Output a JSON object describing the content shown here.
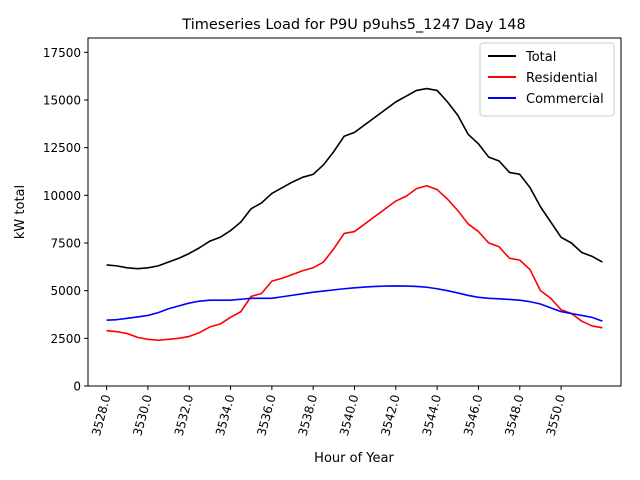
{
  "chart_data": {
    "type": "line",
    "title": "Timeseries Load for P9U p9uhs5_1247  Day 148",
    "xlabel": "Hour of Year",
    "ylabel": "kW total",
    "xlim": [
      3527.1,
      3552.9
    ],
    "ylim": [
      0,
      18250
    ],
    "xticks": [
      3528,
      3530,
      3532,
      3534,
      3536,
      3538,
      3540,
      3542,
      3544,
      3546,
      3548,
      3550
    ],
    "xtick_labels": [
      "3528.0",
      "3530.0",
      "3532.0",
      "3534.0",
      "3536.0",
      "3538.0",
      "3540.0",
      "3542.0",
      "3544.0",
      "3546.0",
      "3548.0",
      "3550.0"
    ],
    "yticks": [
      0,
      2500,
      5000,
      7500,
      10000,
      12500,
      15000,
      17500
    ],
    "ytick_labels": [
      "0",
      "2500",
      "5000",
      "7500",
      "10000",
      "12500",
      "15000",
      "17500"
    ],
    "grid": false,
    "legend": {
      "position": "top-right",
      "entries": [
        "Total",
        "Residential",
        "Commercial"
      ]
    },
    "x": [
      3528.0,
      3528.5,
      3529.0,
      3529.5,
      3530.0,
      3530.5,
      3531.0,
      3531.5,
      3532.0,
      3532.5,
      3533.0,
      3533.5,
      3534.0,
      3534.5,
      3535.0,
      3535.5,
      3536.0,
      3536.5,
      3537.0,
      3537.5,
      3538.0,
      3538.5,
      3539.0,
      3539.5,
      3540.0,
      3540.5,
      3541.0,
      3541.5,
      3542.0,
      3542.5,
      3543.0,
      3543.5,
      3544.0,
      3544.5,
      3545.0,
      3545.5,
      3546.0,
      3546.5,
      3547.0,
      3547.5,
      3548.0,
      3548.5,
      3549.0,
      3549.5,
      3550.0,
      3550.5,
      3551.0,
      3551.5,
      3552.0
    ],
    "series": [
      {
        "name": "Total",
        "color": "#000000",
        "values": [
          6350,
          6300,
          6200,
          6150,
          6200,
          6300,
          6500,
          6700,
          6950,
          7250,
          7600,
          7800,
          8150,
          8600,
          9300,
          9600,
          10100,
          10400,
          10700,
          10950,
          11100,
          11600,
          12300,
          13100,
          13300,
          13700,
          14100,
          14500,
          14900,
          15200,
          15500,
          15600,
          15500,
          14900,
          14200,
          13200,
          12700,
          12000,
          11800,
          11200,
          11100,
          10400,
          9400,
          8600,
          7800,
          7500,
          7000,
          6800,
          6500
        ]
      },
      {
        "name": "Residential",
        "color": "#ff0000",
        "values": [
          2900,
          2850,
          2750,
          2550,
          2450,
          2400,
          2450,
          2500,
          2600,
          2800,
          3100,
          3250,
          3600,
          3900,
          4700,
          4850,
          5500,
          5650,
          5850,
          6050,
          6200,
          6500,
          7200,
          8000,
          8100,
          8500,
          8900,
          9300,
          9700,
          9950,
          10350,
          10500,
          10300,
          9800,
          9200,
          8500,
          8100,
          7500,
          7300,
          6700,
          6600,
          6100,
          5000,
          4600,
          4000,
          3800,
          3400,
          3150,
          3050
        ]
      },
      {
        "name": "Commercial",
        "color": "#0000ff",
        "values": [
          3450,
          3480,
          3550,
          3620,
          3700,
          3850,
          4050,
          4200,
          4350,
          4450,
          4500,
          4500,
          4500,
          4550,
          4600,
          4600,
          4600,
          4680,
          4760,
          4840,
          4920,
          4980,
          5040,
          5100,
          5150,
          5190,
          5220,
          5240,
          5250,
          5240,
          5220,
          5180,
          5100,
          5000,
          4880,
          4750,
          4650,
          4600,
          4570,
          4540,
          4500,
          4420,
          4300,
          4100,
          3900,
          3800,
          3700,
          3600,
          3400
        ]
      }
    ]
  }
}
